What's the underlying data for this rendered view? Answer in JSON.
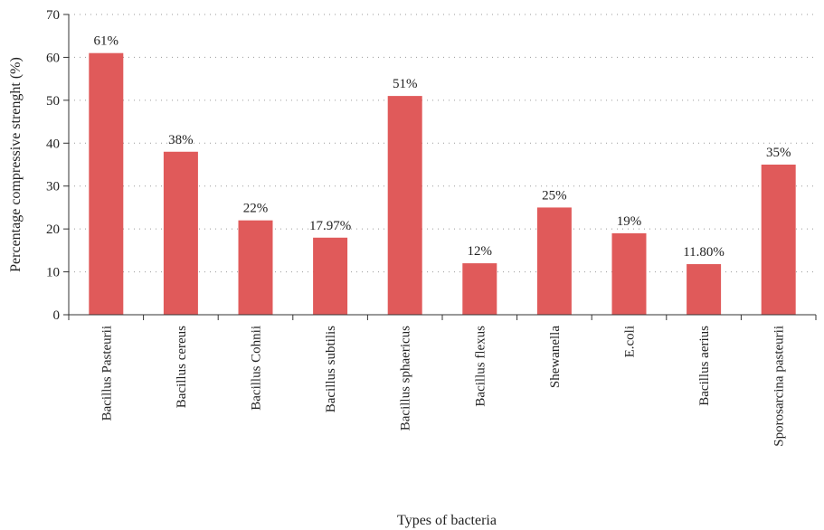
{
  "chart_data": {
    "type": "bar",
    "title": "",
    "xlabel": "Types of bacteria",
    "ylabel": "Percentage compressive strenght (%)",
    "ylim": [
      0,
      70
    ],
    "yticks": [
      0,
      10,
      20,
      30,
      40,
      50,
      60,
      70
    ],
    "grid": "horizontal dotted",
    "categories": [
      "Bacillus Pasteurii",
      "Bacillus cereus",
      "Bacillus Cohnii",
      "Bacillus subtilis",
      "Bacillus sphaericus",
      "Bacillus flexus",
      "Shewanella",
      "E.coli",
      "Bacillus aerius",
      "Sporosarcina pasteurii"
    ],
    "values": [
      61,
      38,
      22,
      17.97,
      51,
      12,
      25,
      19,
      11.8,
      35
    ],
    "data_labels": [
      "61%",
      "38%",
      "22%",
      "17.97%",
      "51%",
      "12%",
      "25%",
      "19%",
      "11.80%",
      "35%"
    ],
    "colors": {
      "bar": "#e05a5a",
      "axis": "#333333",
      "grid": "#9a9a9a"
    }
  }
}
